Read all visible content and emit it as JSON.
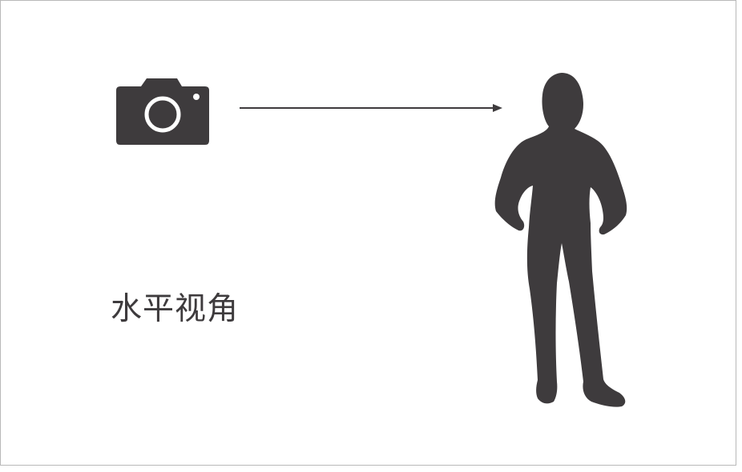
{
  "diagram": {
    "label": "水平视角",
    "icons": {
      "camera": "camera-icon",
      "subject": "standing-person-silhouette"
    },
    "colors": {
      "ink": "#3e3b3d",
      "border": "#b9b9b9",
      "background": "#ffffff"
    }
  }
}
